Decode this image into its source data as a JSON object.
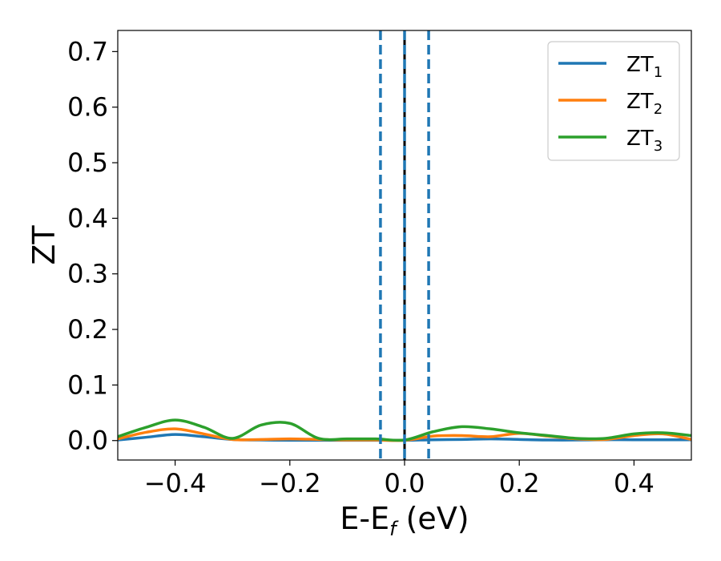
{
  "chart_data": {
    "type": "line",
    "title": "",
    "xlabel": "E-E",
    "xlabel_sub": "f",
    "xlabel_unit": " (eV)",
    "ylabel": "ZT",
    "xlim": [
      -0.5,
      0.5
    ],
    "ylim": [
      -0.035,
      0.738
    ],
    "xticks": [
      -0.4,
      -0.2,
      0.0,
      0.2,
      0.4
    ],
    "xtick_labels": [
      "−0.4",
      "−0.2",
      "0.0",
      "0.2",
      "0.4"
    ],
    "yticks": [
      0.0,
      0.1,
      0.2,
      0.3,
      0.4,
      0.5,
      0.6,
      0.7
    ],
    "ytick_labels": [
      "0.0",
      "0.1",
      "0.2",
      "0.3",
      "0.4",
      "0.5",
      "0.6",
      "0.7"
    ],
    "grid": false,
    "legend_position": "top-right",
    "vlines": [
      {
        "x": 0.0,
        "color": "#000000",
        "style": "solid"
      },
      {
        "x": 0.0,
        "color": "#1f77b4",
        "style": "dashed"
      },
      {
        "x": -0.042,
        "color": "#1f77b4",
        "style": "dashed"
      },
      {
        "x": 0.042,
        "color": "#1f77b4",
        "style": "dashed"
      }
    ],
    "series": [
      {
        "name": "ZT",
        "name_sub": "1",
        "color": "#1f77b4",
        "x": [
          -0.5,
          -0.45,
          -0.4,
          -0.35,
          -0.3,
          -0.25,
          -0.2,
          -0.15,
          -0.1,
          -0.05,
          0.0,
          0.05,
          0.1,
          0.15,
          0.2,
          0.25,
          0.3,
          0.35,
          0.4,
          0.45,
          0.5
        ],
        "y": [
          0.001,
          0.006,
          0.011,
          0.007,
          0.002,
          0.001,
          0.0005,
          0.0005,
          0.0005,
          0.0005,
          0.0005,
          0.0015,
          0.002,
          0.003,
          0.002,
          0.001,
          0.001,
          0.0015,
          0.0015,
          0.0015,
          0.0015
        ]
      },
      {
        "name": "ZT",
        "name_sub": "2",
        "color": "#ff7f0e",
        "x": [
          -0.5,
          -0.45,
          -0.4,
          -0.35,
          -0.3,
          -0.25,
          -0.2,
          -0.15,
          -0.1,
          -0.05,
          0.0,
          0.05,
          0.1,
          0.15,
          0.2,
          0.25,
          0.3,
          0.35,
          0.4,
          0.45,
          0.5
        ],
        "y": [
          0.003,
          0.015,
          0.021,
          0.012,
          0.002,
          0.002,
          0.003,
          0.002,
          0.001,
          0.001,
          0.0005,
          0.008,
          0.009,
          0.007,
          0.013,
          0.008,
          0.003,
          0.002,
          0.009,
          0.012,
          0.002
        ]
      },
      {
        "name": "ZT",
        "name_sub": "3",
        "color": "#2ca02c",
        "x": [
          -0.5,
          -0.45,
          -0.4,
          -0.35,
          -0.3,
          -0.25,
          -0.2,
          -0.15,
          -0.1,
          -0.05,
          0.0,
          0.05,
          0.1,
          0.15,
          0.2,
          0.25,
          0.3,
          0.35,
          0.4,
          0.45,
          0.5
        ],
        "y": [
          0.007,
          0.024,
          0.037,
          0.024,
          0.004,
          0.028,
          0.031,
          0.004,
          0.003,
          0.003,
          0.001,
          0.016,
          0.025,
          0.021,
          0.014,
          0.009,
          0.004,
          0.004,
          0.012,
          0.014,
          0.009
        ]
      }
    ]
  }
}
